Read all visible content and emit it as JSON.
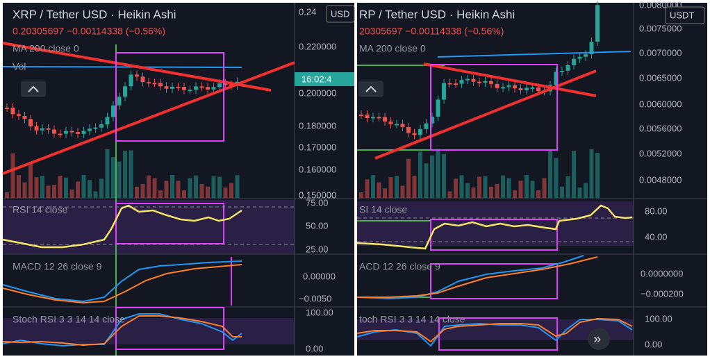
{
  "left": {
    "title": "XRP / Tether USD · Heikin Ashi",
    "quote": "0.20305697 −0.00114338 (−0.56%)",
    "ma": "MA 200 close 0",
    "vol": "Vol",
    "currency": "USD",
    "time_label": "16:02:4",
    "price_axis": [
      "0.24",
      "0.220000",
      "0.200000",
      "0.180000",
      "0.170000",
      "0.160000",
      "0.150000"
    ],
    "rsi": {
      "label": "RSI 14 close",
      "axis": [
        "75.00",
        "50.00",
        "25.00"
      ]
    },
    "macd": {
      "label": "MACD 12 26 close 9",
      "axis": [
        "0.00000",
        "−0.0050"
      ]
    },
    "stoch": {
      "label": "Stoch RSI 3 3 14 14 close",
      "axis": [
        "100.00",
        "0.00"
      ]
    }
  },
  "right": {
    "title": "RP / Tether USD · Heikin Ashi",
    "quote": "20305697 −0.00114338 (−0.56%)",
    "ma": "MA 200 close 0",
    "currency": "USDT",
    "price_axis": [
      "0.0080000",
      "0.0075000",
      "0.0070000",
      "0.0065000",
      "0.0060000",
      "0.0056000",
      "0.0052000",
      "0.0048000"
    ],
    "rsi": {
      "label": "SI 14 close",
      "axis": [
        "80.00",
        "40.00"
      ]
    },
    "macd": {
      "label": "ACD 12 26 close 9",
      "axis": [
        "0.0000000",
        "−0.000200"
      ]
    },
    "stoch": {
      "label": "toch RSI 3 3 14 14 close",
      "axis": [
        "100.00",
        "0.00"
      ]
    },
    "button": "»"
  }
}
